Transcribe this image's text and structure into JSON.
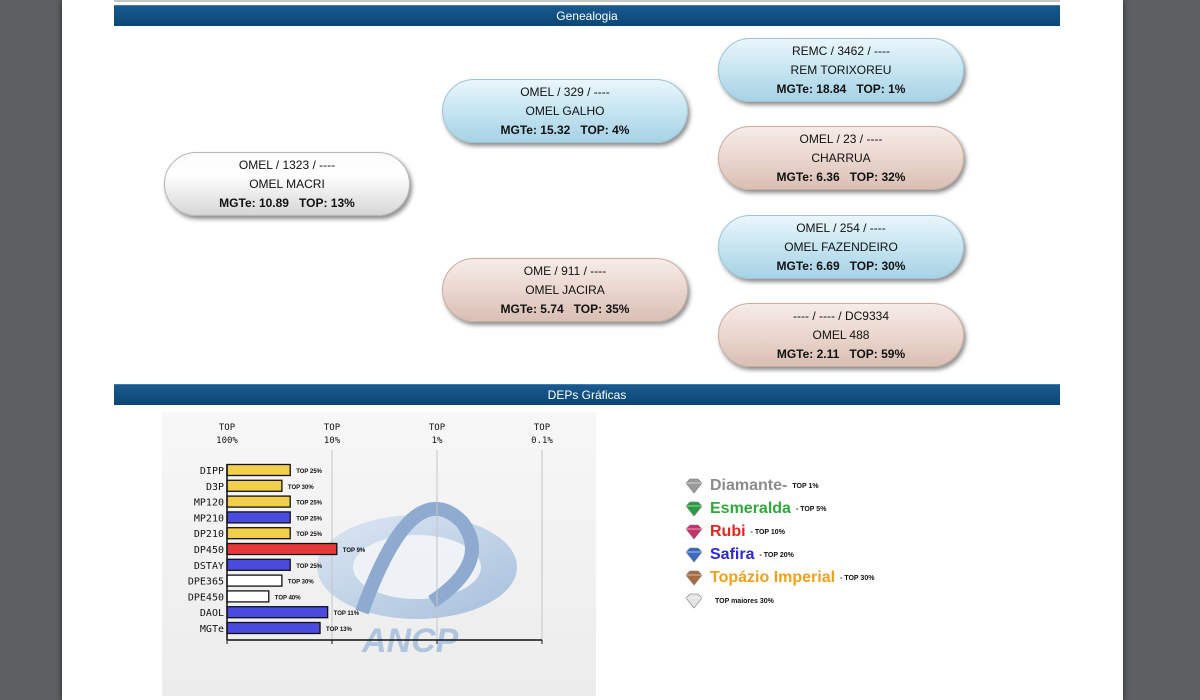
{
  "sections": {
    "genealogia": "Genealogia",
    "deps": "DEPs Gráficas"
  },
  "genealogy": {
    "subject": {
      "line1": "OMEL / 1323 / ----",
      "line2": "OMEL MACRI",
      "mgte": "MGTe: 10.89",
      "top": "TOP: 13%",
      "color": "#d9d9d9"
    },
    "sire": {
      "line1": "OMEL / 329 / ----",
      "line2": "OMEL GALHO",
      "mgte": "MGTe: 15.32",
      "top": "TOP: 4%",
      "color": "#bfe0ee"
    },
    "dam": {
      "line1": "OME / 911 / ----",
      "line2": "OMEL JACIRA",
      "mgte": "MGTe: 5.74",
      "top": "TOP: 35%",
      "color": "#e8d2c9"
    },
    "sire_sire": {
      "line1": "REMC / 3462 / ----",
      "line2": "REM TORIXOREU",
      "mgte": "MGTe: 18.84",
      "top": "TOP: 1%"
    },
    "sire_dam": {
      "line1": "OMEL / 23 / ----",
      "line2": "CHARRUA",
      "mgte": "MGTe: 6.36",
      "top": "TOP: 32%"
    },
    "dam_sire": {
      "line1": "OMEL / 254 / ----",
      "line2": "OMEL FAZENDEIRO",
      "mgte": "MGTe: 6.69",
      "top": "TOP: 30%"
    },
    "dam_dam": {
      "line1": "---- / ---- / DC9334",
      "line2": "OMEL 488",
      "mgte": "MGTe: 2.11",
      "top": "TOP: 59%"
    }
  },
  "chart_data": {
    "type": "bar",
    "orientation": "horizontal",
    "axis_top_labels": [
      {
        "l1": "TOP",
        "l2": "100%"
      },
      {
        "l1": "TOP",
        "l2": "10%"
      },
      {
        "l1": "TOP",
        "l2": "1%"
      },
      {
        "l1": "TOP",
        "l2": "0.1%"
      }
    ],
    "categories": [
      "DIPP",
      "D3P",
      "MP120",
      "MP210",
      "DP210",
      "DP450",
      "DSTAY",
      "DPE365",
      "DPE450",
      "DAOL",
      "MGTe"
    ],
    "values": [
      25,
      30,
      25,
      25,
      25,
      9,
      25,
      30,
      40,
      11,
      13
    ],
    "value_labels": [
      "TOP 25%",
      "TOP 30%",
      "TOP 25%",
      "TOP 25%",
      "TOP 25%",
      "TOP 9%",
      "TOP 25%",
      "TOP 30%",
      "TOP 40%",
      "TOP 11%",
      "TOP 13%"
    ],
    "bar_colors": [
      "#f2cf4a",
      "#f2cf4a",
      "#f2cf4a",
      "#4a4adf",
      "#f2cf4a",
      "#e63a3a",
      "#4a4adf",
      "#ffffff",
      "#ffffff",
      "#4a4adf",
      "#4a4adf"
    ],
    "scale": "log",
    "xlim": [
      100,
      0.1
    ],
    "grid": true,
    "watermark": "ANCP"
  },
  "legend": [
    {
      "name": "Diamante",
      "dash": " -",
      "note": "TOP 1%",
      "color": "#8c8c8c",
      "gem": "#9a9a9a",
      "icon": "diamond-gray-icon"
    },
    {
      "name": "Esmeralda",
      "dash": "",
      "note": "- TOP 5%",
      "color": "#2faa3a",
      "gem": "#2a9a43",
      "icon": "diamond-green-icon"
    },
    {
      "name": "Rubi",
      "dash": "",
      "note": "- TOP 10%",
      "color": "#e0261f",
      "gem": "#c8326a",
      "icon": "diamond-red-icon"
    },
    {
      "name": "Safira",
      "dash": "",
      "note": "- TOP 20%",
      "color": "#2a2ad0",
      "gem": "#3a6ac0",
      "icon": "diamond-blue-icon"
    },
    {
      "name": "Topázio Imperial",
      "dash": "",
      "note": "- TOP 30%",
      "color": "#f0a019",
      "gem": "#a86a40",
      "icon": "diamond-brown-icon"
    },
    {
      "name": "",
      "dash": "",
      "note": "TOP maiores 30%",
      "color": "#111111",
      "gem": "#e4e4e4",
      "icon": "diamond-white-icon"
    }
  ]
}
